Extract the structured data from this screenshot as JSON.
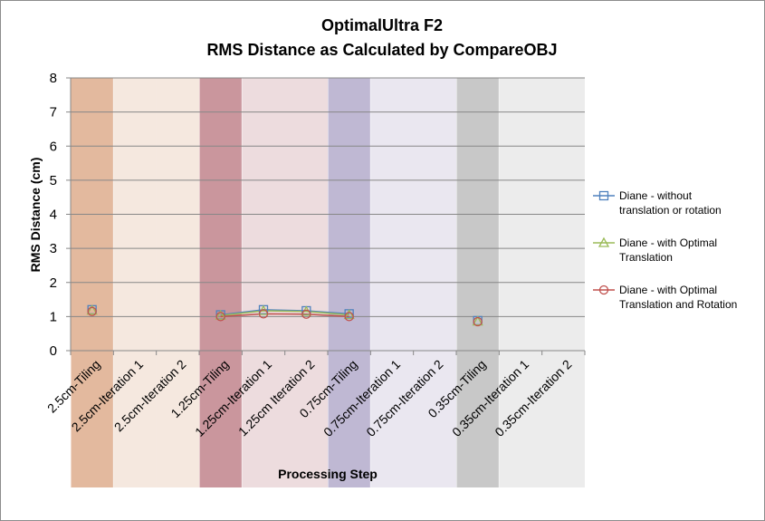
{
  "chart_data": {
    "type": "line",
    "title_lines": [
      "OptimalUltra F2",
      "RMS Distance as Calculated by CompareOBJ"
    ],
    "xlabel": "Processing Step",
    "ylabel": "RMS Distance (cm)",
    "ylim": [
      0,
      8
    ],
    "yticks": [
      0,
      1,
      2,
      3,
      4,
      5,
      6,
      7,
      8
    ],
    "grid": true,
    "legend_position": "right",
    "categories": [
      "2.5cm-Tiling",
      "2.5cm-Iteration 1",
      "2.5cm-Iteration 2",
      "1.25cm-Tiling",
      "1.25cm-Iteration 1",
      "1.25cm Iteration 2",
      "0.75cm-Tiling",
      "0.75cm-Iteration 1",
      "0.75cm-Iteration 2",
      "0.35cm-Tiling",
      "0.35cm-Iteration 1",
      "0.35cm-Iteration 2"
    ],
    "bands": [
      {
        "categories": [
          0,
          2
        ],
        "color": "#d9a27e",
        "strong": 0
      },
      {
        "categories": [
          3,
          5
        ],
        "color": "#b8737c",
        "strong": 3
      },
      {
        "categories": [
          6,
          8
        ],
        "color": "#aaa0c4",
        "strong": 6
      },
      {
        "categories": [
          9,
          11
        ],
        "color": "#b5b5b5",
        "strong": 9
      }
    ],
    "series": [
      {
        "name": "Diane - without translation or rotation",
        "legend_lines": [
          "Diane - without",
          "translation or rotation"
        ],
        "color": "#4f81bd",
        "marker": "square",
        "values": [
          1.2,
          null,
          null,
          1.05,
          1.2,
          1.17,
          1.08,
          null,
          null,
          0.88,
          null,
          null
        ]
      },
      {
        "name": "Diane - with Optimal Translation",
        "legend_lines": [
          "Diane - with Optimal",
          "Translation"
        ],
        "color": "#9bbb59",
        "marker": "triangle",
        "values": [
          1.18,
          null,
          null,
          1.03,
          1.17,
          1.15,
          1.05,
          null,
          null,
          0.86,
          null,
          null
        ]
      },
      {
        "name": "Diane - with Optimal Translation and Rotation",
        "legend_lines": [
          "Diane - with Optimal",
          "Translation and Rotation"
        ],
        "color": "#c0504d",
        "marker": "circle",
        "values": [
          1.15,
          null,
          null,
          1.0,
          1.08,
          1.07,
          1.0,
          null,
          null,
          0.85,
          null,
          null
        ]
      }
    ]
  }
}
